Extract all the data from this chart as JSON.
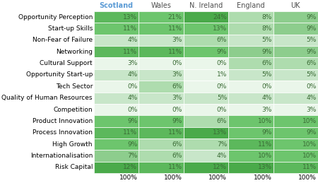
{
  "columns": [
    "Scotland",
    "Wales",
    "N. Ireland",
    "England",
    "UK"
  ],
  "rows": [
    "Opportunity Perception",
    "Start-up Skills",
    "Non-Fear of Failure",
    "Networking",
    "Cultural Support",
    "Opportunity Start-up",
    "Tech Sector",
    "Quality of Human Resources",
    "Competition",
    "Product Innovation",
    "Process Innovation",
    "High Growth",
    "Internationalisation",
    "Risk Capital"
  ],
  "values": [
    [
      13,
      21,
      24,
      8,
      9
    ],
    [
      11,
      11,
      13,
      8,
      9
    ],
    [
      4,
      3,
      6,
      5,
      5
    ],
    [
      11,
      11,
      9,
      9,
      9
    ],
    [
      3,
      0,
      0,
      6,
      6
    ],
    [
      4,
      3,
      1,
      5,
      5
    ],
    [
      0,
      6,
      0,
      0,
      0
    ],
    [
      4,
      3,
      5,
      4,
      4
    ],
    [
      0,
      0,
      0,
      3,
      3
    ],
    [
      9,
      9,
      6,
      10,
      10
    ],
    [
      11,
      11,
      13,
      9,
      9
    ],
    [
      9,
      6,
      7,
      11,
      10
    ],
    [
      7,
      6,
      4,
      10,
      10
    ],
    [
      12,
      11,
      12,
      13,
      11
    ]
  ],
  "totals": [
    "100%",
    "100%",
    "100%",
    "100%",
    "100%"
  ],
  "cell_colors": [
    [
      "#5cb85c",
      "#6dc56d",
      "#4aaa4a",
      "#aedcae",
      "#8dcd8d"
    ],
    [
      "#6dc56d",
      "#6dc56d",
      "#6dc56d",
      "#aedcae",
      "#8dcd8d"
    ],
    [
      "#c8e6c9",
      "#c8e6c9",
      "#aedcae",
      "#c8e6c9",
      "#c8e6c9"
    ],
    [
      "#5cb85c",
      "#5cb85c",
      "#6dc56d",
      "#8dcd8d",
      "#8dcd8d"
    ],
    [
      "#eaf6ea",
      "#eaf6ea",
      "#eaf6ea",
      "#aedcae",
      "#aedcae"
    ],
    [
      "#c8e6c9",
      "#c8e6c9",
      "#eaf6ea",
      "#c8e6c9",
      "#c8e6c9"
    ],
    [
      "#eaf6ea",
      "#aedcae",
      "#eaf6ea",
      "#eaf6ea",
      "#eaf6ea"
    ],
    [
      "#c8e6c9",
      "#c8e6c9",
      "#c8e6c9",
      "#c8e6c9",
      "#c8e6c9"
    ],
    [
      "#eaf6ea",
      "#eaf6ea",
      "#eaf6ea",
      "#eaf6ea",
      "#eaf6ea"
    ],
    [
      "#6dc56d",
      "#6dc56d",
      "#aedcae",
      "#6dc56d",
      "#6dc56d"
    ],
    [
      "#5cb85c",
      "#5cb85c",
      "#4aaa4a",
      "#6dc56d",
      "#6dc56d"
    ],
    [
      "#6dc56d",
      "#aedcae",
      "#aedcae",
      "#5cb85c",
      "#6dc56d"
    ],
    [
      "#8dcd8d",
      "#aedcae",
      "#c8e6c9",
      "#6dc56d",
      "#6dc56d"
    ],
    [
      "#4aaa4a",
      "#5cb85c",
      "#4aaa4a",
      "#4aaa4a",
      "#5cb85c"
    ]
  ],
  "scotland_header_color": "#5b9bd5",
  "other_header_color": "#4f4f4f",
  "text_color": "#3a6b35",
  "fig_bg": "#ffffff",
  "font_size": 6.5,
  "header_font_size": 7.0,
  "label_font_size": 6.5
}
